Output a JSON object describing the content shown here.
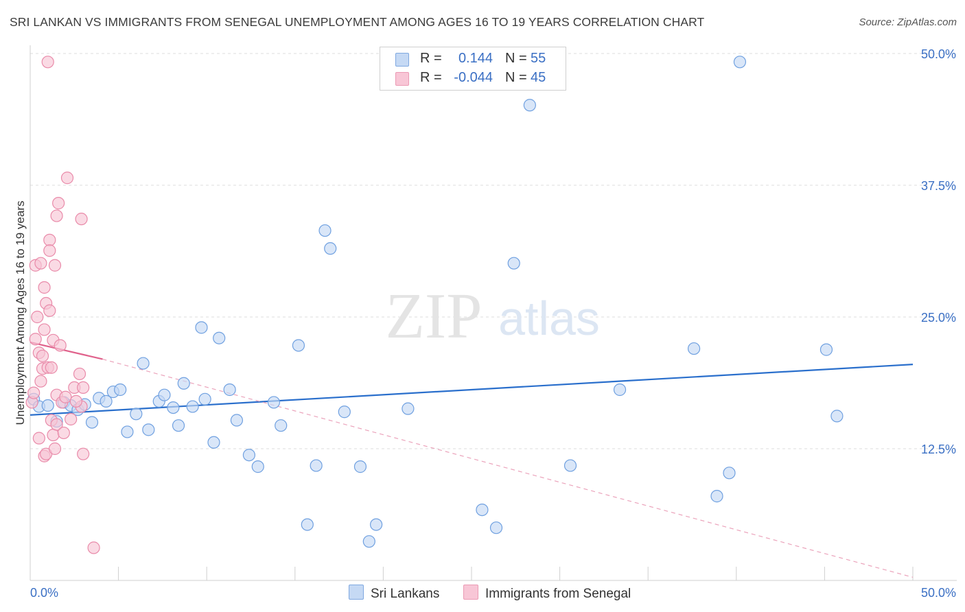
{
  "title": "SRI LANKAN VS IMMIGRANTS FROM SENEGAL UNEMPLOYMENT AMONG AGES 16 TO 19 YEARS CORRELATION CHART",
  "source": "Source: ZipAtlas.com",
  "watermark": {
    "zip": "ZIP",
    "atlas": "atlas"
  },
  "legend": {
    "rows": [
      {
        "r_label": "R =",
        "r_value": "0.144",
        "n_label": "N =",
        "n_value": "55",
        "color": "#a9c7ef"
      },
      {
        "r_label": "R =",
        "r_value": "-0.044",
        "n_label": "N =",
        "n_value": "45",
        "color": "#f5b6cb"
      }
    ]
  },
  "bottom_legend": {
    "series1": "Sri Lankans",
    "series2": "Immigrants from Senegal"
  },
  "chart_data": {
    "type": "scatter",
    "title": "SRI LANKAN VS IMMIGRANTS FROM SENEGAL UNEMPLOYMENT AMONG AGES 16 TO 19 YEARS CORRELATION CHART",
    "xlabel": "",
    "ylabel": "Unemployment Among Ages 16 to 19 years",
    "xlim": [
      0,
      50
    ],
    "ylim": [
      0,
      50
    ],
    "x_tick_labels": [
      "0.0%",
      "50.0%"
    ],
    "y_tick_labels": [
      "12.5%",
      "25.0%",
      "37.5%",
      "50.0%"
    ],
    "y_ticks": [
      12.5,
      25.0,
      37.5,
      50.0
    ],
    "grid": true,
    "legend_position": "top-center",
    "series": [
      {
        "name": "Sri Lankans",
        "color": "#6fa0e0",
        "fill": "#c5d9f4",
        "trend": {
          "x": [
            0,
            50
          ],
          "y": [
            15.7,
            20.5
          ],
          "style": "solid",
          "line_color": "#2a6fcc"
        },
        "points": [
          [
            0.2,
            17.2
          ],
          [
            0.5,
            16.5
          ],
          [
            1.0,
            16.6
          ],
          [
            1.9,
            16.9
          ],
          [
            1.5,
            15.1
          ],
          [
            2.3,
            16.6
          ],
          [
            2.7,
            16.2
          ],
          [
            3.1,
            16.7
          ],
          [
            3.5,
            15.0
          ],
          [
            3.9,
            17.3
          ],
          [
            4.3,
            17.0
          ],
          [
            4.7,
            17.9
          ],
          [
            5.1,
            18.1
          ],
          [
            5.5,
            14.1
          ],
          [
            6.0,
            15.8
          ],
          [
            6.4,
            20.6
          ],
          [
            6.7,
            14.3
          ],
          [
            7.3,
            17.0
          ],
          [
            7.6,
            17.6
          ],
          [
            8.1,
            16.4
          ],
          [
            8.4,
            14.7
          ],
          [
            8.7,
            18.7
          ],
          [
            9.2,
            16.5
          ],
          [
            9.7,
            24.0
          ],
          [
            9.9,
            17.2
          ],
          [
            10.4,
            13.1
          ],
          [
            10.7,
            23.0
          ],
          [
            11.3,
            18.1
          ],
          [
            11.7,
            15.2
          ],
          [
            12.4,
            11.9
          ],
          [
            12.9,
            10.8
          ],
          [
            13.8,
            16.9
          ],
          [
            14.2,
            14.7
          ],
          [
            15.2,
            22.3
          ],
          [
            15.7,
            5.3
          ],
          [
            16.2,
            10.9
          ],
          [
            16.7,
            33.2
          ],
          [
            17.0,
            31.5
          ],
          [
            17.8,
            16.0
          ],
          [
            18.7,
            10.8
          ],
          [
            19.6,
            5.3
          ],
          [
            19.2,
            3.7
          ],
          [
            21.4,
            16.3
          ],
          [
            25.6,
            6.7
          ],
          [
            26.4,
            5.0
          ],
          [
            27.4,
            30.1
          ],
          [
            28.3,
            45.1
          ],
          [
            30.6,
            10.9
          ],
          [
            33.4,
            18.1
          ],
          [
            37.6,
            22.0
          ],
          [
            38.9,
            8.0
          ],
          [
            39.6,
            10.2
          ],
          [
            40.2,
            49.2
          ],
          [
            45.1,
            21.9
          ],
          [
            45.7,
            15.6
          ]
        ]
      },
      {
        "name": "Immigrants from Senegal",
        "color": "#e98aa9",
        "fill": "#f8c6d6",
        "trend": {
          "x": [
            0,
            4.1
          ],
          "y": [
            22.6,
            21.0
          ],
          "style": "solid",
          "dashed_extension_to": [
            50,
            0.3
          ],
          "line_color": "#e0628c"
        },
        "points": [
          [
            0.1,
            16.9
          ],
          [
            0.2,
            17.8
          ],
          [
            0.3,
            22.9
          ],
          [
            0.3,
            29.9
          ],
          [
            0.4,
            25.0
          ],
          [
            0.5,
            21.6
          ],
          [
            0.5,
            13.5
          ],
          [
            0.6,
            18.9
          ],
          [
            0.6,
            30.1
          ],
          [
            0.7,
            21.3
          ],
          [
            0.7,
            20.1
          ],
          [
            0.8,
            23.8
          ],
          [
            0.8,
            27.8
          ],
          [
            0.8,
            11.8
          ],
          [
            0.9,
            26.3
          ],
          [
            0.9,
            12.0
          ],
          [
            1.0,
            20.2
          ],
          [
            1.1,
            32.3
          ],
          [
            1.1,
            31.3
          ],
          [
            1.1,
            25.6
          ],
          [
            1.2,
            20.2
          ],
          [
            1.2,
            15.2
          ],
          [
            1.3,
            22.8
          ],
          [
            1.3,
            13.8
          ],
          [
            1.4,
            29.9
          ],
          [
            1.5,
            34.6
          ],
          [
            1.5,
            17.6
          ],
          [
            1.5,
            14.8
          ],
          [
            1.6,
            35.8
          ],
          [
            1.9,
            14.0
          ],
          [
            1.0,
            49.2
          ],
          [
            1.8,
            16.9
          ],
          [
            1.7,
            22.3
          ],
          [
            2.0,
            17.4
          ],
          [
            2.1,
            38.2
          ],
          [
            2.5,
            18.3
          ],
          [
            2.8,
            19.6
          ],
          [
            3.0,
            18.3
          ],
          [
            3.0,
            12.0
          ],
          [
            2.9,
            16.5
          ],
          [
            2.3,
            15.3
          ],
          [
            2.6,
            17.0
          ],
          [
            2.9,
            34.3
          ],
          [
            3.6,
            3.1
          ],
          [
            1.4,
            12.5
          ]
        ]
      }
    ]
  }
}
